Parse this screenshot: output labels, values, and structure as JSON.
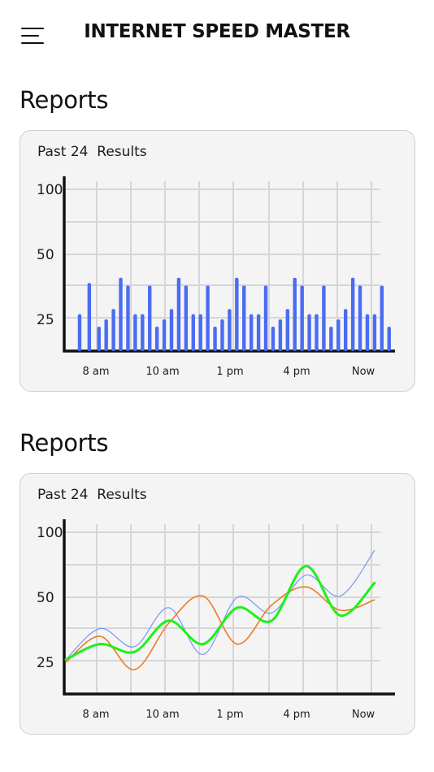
{
  "header": {
    "title": "INTERNET SPEED MASTER",
    "menu_icon": "hamburger-menu-icon"
  },
  "sections": [
    {
      "title": "Reports",
      "caption": "Past 24  Results"
    },
    {
      "title": "Reports",
      "caption": "Past 24  Results"
    }
  ],
  "colors": {
    "bar": "#4a6cf0",
    "axis": "#111111",
    "grid": "#d6d6d8",
    "line_blue": "#7b96f0",
    "line_orange": "#f07a1e",
    "line_green": "#1ef01a"
  },
  "chart_data": [
    {
      "type": "bar",
      "ylim": [
        12,
        105
      ],
      "y_ticks": [
        100,
        50,
        25
      ],
      "x_tick_labels": [
        "8 am",
        "10 am",
        "1 pm",
        "4 pm",
        "Now"
      ],
      "x_range": [
        0,
        47
      ],
      "values": [
        27,
        39,
        22,
        25,
        29,
        41,
        38,
        27,
        27,
        38,
        22,
        25,
        29,
        41,
        38,
        27,
        27,
        38,
        22,
        25,
        29,
        41,
        38,
        27,
        27,
        38,
        22,
        25,
        29,
        41,
        38,
        27,
        27,
        38,
        22,
        25,
        29,
        41,
        38,
        27,
        27,
        38,
        22
      ],
      "bar_x": [
        1,
        3,
        5,
        6.5,
        8,
        9.5,
        11,
        12.5,
        14,
        15.5,
        17,
        18.5,
        20,
        21.5,
        23,
        24.5,
        26,
        27.5,
        29,
        30.5,
        32,
        33.5,
        35,
        36.5,
        38,
        39.5,
        41,
        42.5,
        44,
        45.5,
        47,
        48.5,
        50,
        51.5,
        53,
        54.5,
        56,
        57.5,
        59,
        60.5,
        62,
        63.5,
        65
      ]
    },
    {
      "type": "line",
      "ylim": [
        12,
        105
      ],
      "y_ticks": [
        100,
        50,
        25
      ],
      "x_tick_labels": [
        "8 am",
        "10 am",
        "1 pm",
        "4 pm",
        "Now"
      ],
      "x": [
        0,
        1,
        2,
        3,
        4,
        5,
        6,
        7,
        8,
        9
      ],
      "series": [
        {
          "color_key": "line_blue",
          "values": [
            26,
            38,
            31,
            46,
            28,
            50,
            44,
            67,
            51,
            86
          ]
        },
        {
          "color_key": "line_orange",
          "values": [
            25,
            35,
            22,
            40,
            51,
            32,
            47,
            58,
            45,
            49
          ]
        },
        {
          "color_key": "line_green",
          "values": [
            26,
            32,
            29,
            41,
            32,
            46,
            41,
            74,
            43,
            61
          ]
        }
      ]
    }
  ]
}
